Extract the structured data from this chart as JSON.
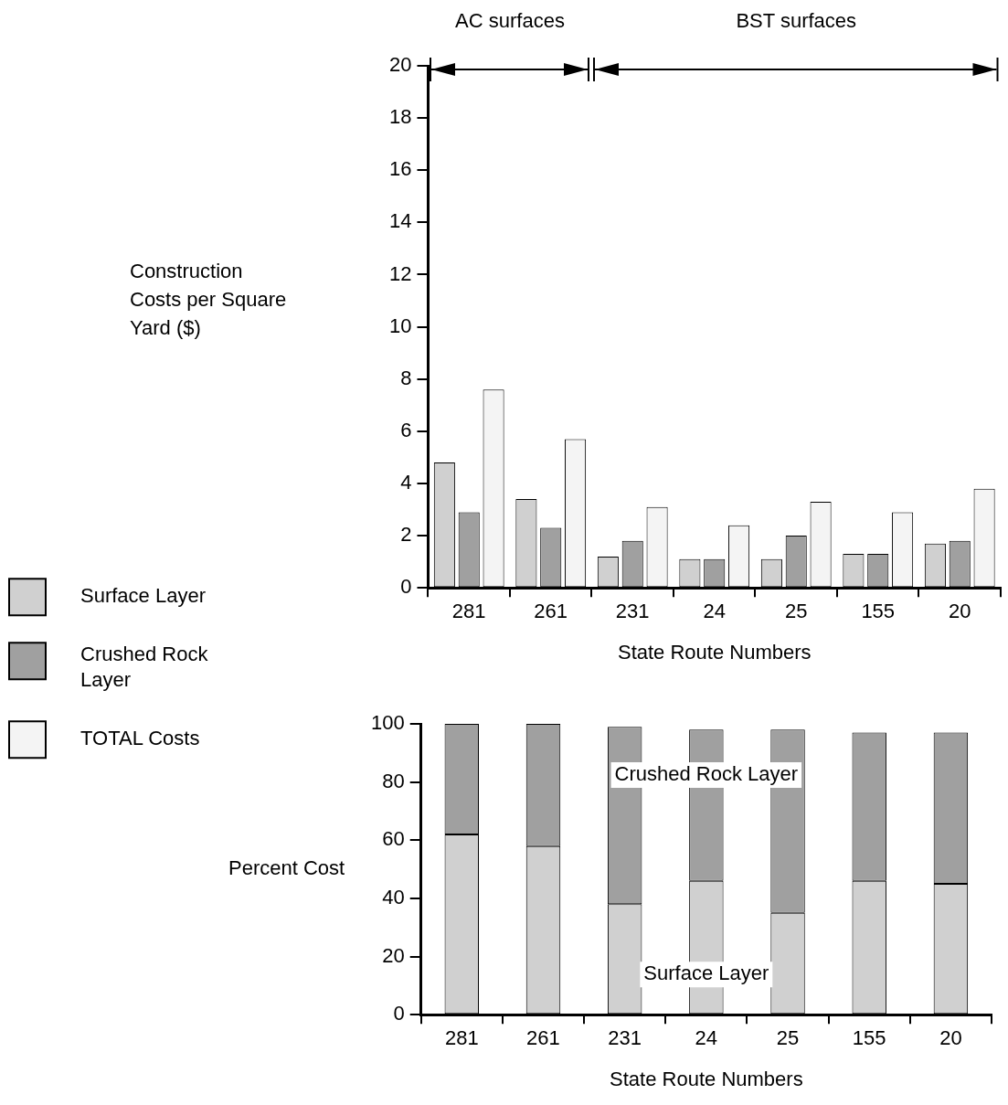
{
  "chart_data": [
    {
      "type": "bar",
      "ylabel": "Construction Costs per Square Yard ($)",
      "xlabel": "State Route Numbers",
      "categories": [
        "281",
        "261",
        "231",
        "24",
        "25",
        "155",
        "20"
      ],
      "series": [
        {
          "name": "Surface Layer",
          "color": "#d0d0d0",
          "values": [
            4.8,
            3.4,
            1.2,
            1.1,
            1.1,
            1.3,
            1.7
          ]
        },
        {
          "name": "Crushed Rock Layer",
          "color": "#a0a0a0",
          "values": [
            2.9,
            2.3,
            1.8,
            1.1,
            2.0,
            1.3,
            1.8
          ]
        },
        {
          "name": "TOTAL Costs",
          "color": "#f4f4f4",
          "values": [
            7.6,
            5.7,
            3.1,
            2.4,
            3.3,
            2.9,
            3.8
          ]
        }
      ],
      "ylim": [
        0,
        20
      ],
      "yticks": [
        0,
        2,
        4,
        6,
        8,
        10,
        12,
        14,
        16,
        18,
        20
      ],
      "grid": false,
      "legend": "left",
      "annotations": [
        "AC surfaces",
        "BST surfaces"
      ]
    },
    {
      "type": "bar",
      "stacked": true,
      "ylabel": "Percent Cost",
      "xlabel": "State Route Numbers",
      "categories": [
        "281",
        "261",
        "231",
        "24",
        "25",
        "155",
        "20"
      ],
      "series": [
        {
          "name": "Surface Layer",
          "color": "#d0d0d0",
          "values": [
            62,
            58,
            38,
            46,
            35,
            46,
            45
          ]
        },
        {
          "name": "Crushed Rock Layer",
          "color": "#a0a0a0",
          "values": [
            38,
            42,
            61,
            52,
            63,
            51,
            52
          ]
        }
      ],
      "ylim": [
        0,
        100
      ],
      "yticks": [
        0,
        20,
        40,
        60,
        80,
        100
      ],
      "grid": false,
      "legend": false
    }
  ]
}
